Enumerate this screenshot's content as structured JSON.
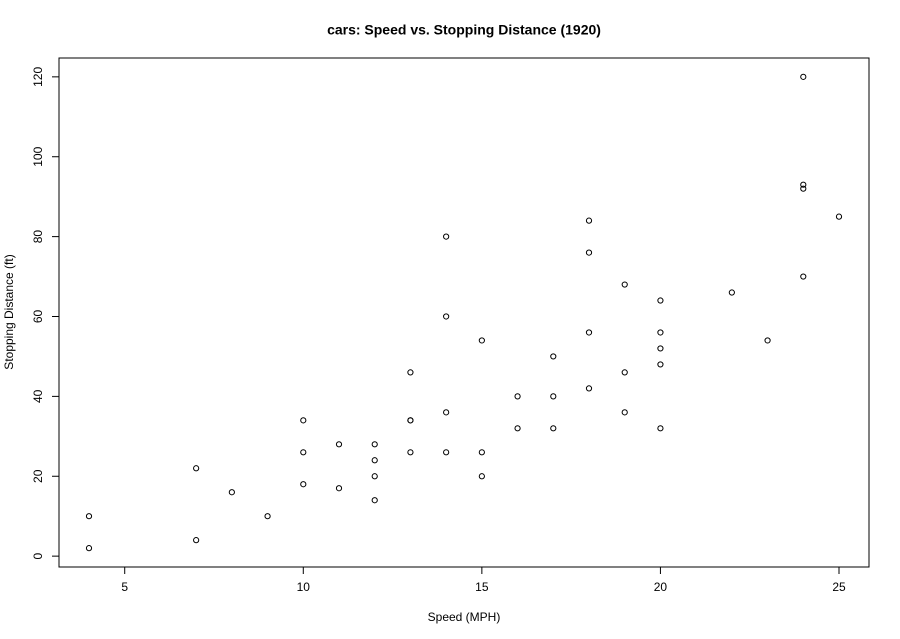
{
  "chart_data": {
    "type": "scatter",
    "title": "cars: Speed vs. Stopping Distance (1920)",
    "x_label": "Speed (MPH)",
    "y_label": "Stopping Distance (ft)",
    "x": [
      4,
      4,
      7,
      7,
      8,
      9,
      10,
      10,
      10,
      11,
      11,
      12,
      12,
      12,
      12,
      13,
      13,
      13,
      13,
      14,
      14,
      14,
      14,
      15,
      15,
      15,
      16,
      16,
      17,
      17,
      17,
      18,
      18,
      18,
      18,
      19,
      19,
      19,
      20,
      20,
      20,
      20,
      20,
      22,
      23,
      24,
      24,
      24,
      24,
      25
    ],
    "values": [
      2,
      10,
      4,
      22,
      16,
      10,
      18,
      26,
      34,
      17,
      28,
      14,
      20,
      24,
      28,
      26,
      34,
      34,
      46,
      26,
      36,
      60,
      80,
      20,
      26,
      54,
      32,
      40,
      32,
      40,
      50,
      42,
      56,
      76,
      84,
      36,
      46,
      68,
      32,
      48,
      52,
      56,
      64,
      66,
      54,
      70,
      92,
      93,
      120,
      85
    ],
    "color": "#000000",
    "xlim": [
      3.16,
      25.84
    ],
    "xticks": [
      5,
      10,
      15,
      20,
      25
    ],
    "ylim": [
      -2.72,
      124.72
    ],
    "yticks": [
      0,
      20,
      40,
      60,
      80,
      100,
      120
    ],
    "grid": false
  }
}
